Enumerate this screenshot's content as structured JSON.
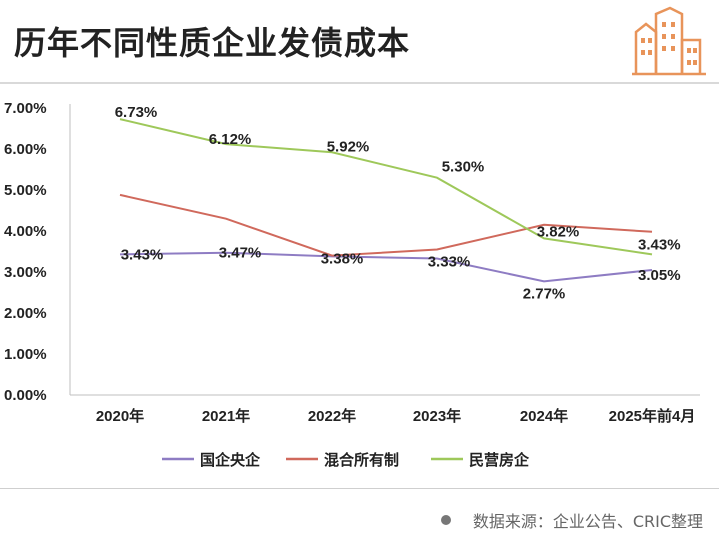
{
  "header": {
    "title": "历年不同性质企业发债成本",
    "logo_icon": "buildings-icon",
    "logo_color": "#e8945a"
  },
  "footer": {
    "source_text": "数据来源：企业公告、CRIC整理"
  },
  "chart_data": {
    "type": "line",
    "categories": [
      "2020年",
      "2021年",
      "2022年",
      "2023年",
      "2024年",
      "2025年前4月"
    ],
    "ylim": [
      0,
      7
    ],
    "y_ticks": [
      "0.00%",
      "1.00%",
      "2.00%",
      "3.00%",
      "4.00%",
      "5.00%",
      "6.00%",
      "7.00%"
    ],
    "y_unit": "%",
    "grid": false,
    "legend_position": "bottom",
    "series": [
      {
        "name": "国企央企",
        "color": "#8e7cc3",
        "values": [
          3.43,
          3.47,
          3.38,
          3.33,
          2.77,
          3.05
        ],
        "labels": [
          "3.43%",
          "3.47%",
          "3.38%",
          "3.33%",
          "2.77%",
          "3.05%"
        ]
      },
      {
        "name": "混合所有制",
        "color": "#d0695c",
        "values": [
          4.88,
          4.3,
          3.4,
          3.55,
          4.15,
          3.98
        ],
        "labels": []
      },
      {
        "name": "民营房企",
        "color": "#9ec85a",
        "values": [
          6.73,
          6.12,
          5.92,
          5.3,
          3.82,
          3.43
        ],
        "labels": [
          "6.73%",
          "6.12%",
          "5.92%",
          "5.30%",
          "3.82%",
          "3.43%"
        ]
      }
    ]
  }
}
